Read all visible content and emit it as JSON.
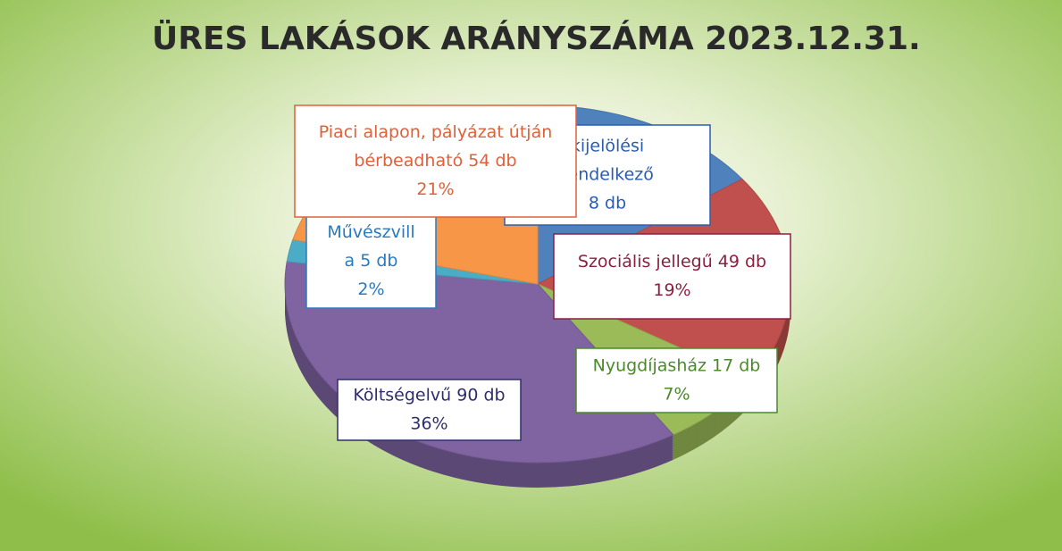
{
  "chart_data": {
    "type": "pie3d",
    "title": "ÜRES LAKÁSOK ARÁNYSZÁMA 2023.12.31.",
    "categories": [
      [
        "kijelölési",
        "rendelkező",
        "8 db"
      ],
      [
        "Szociális jellegű 49 db"
      ],
      [
        "Nyugdíjasház 17 db"
      ],
      [
        "Költségelvű 90 db"
      ],
      [
        "Művészvill",
        "a 5 db"
      ],
      [
        "Piaci alapon, pályázat útján",
        "bérbeadható 54 db"
      ]
    ],
    "values": [
      15,
      19,
      7,
      36,
      2,
      21
    ],
    "value_labels": [
      null,
      "19%",
      "7%",
      "36%",
      "2%",
      "21%"
    ],
    "colors": [
      "#4f81bd",
      "#c0504d",
      "#9bbb59",
      "#8064a2",
      "#4bacc6",
      "#f79646"
    ],
    "label_colors": [
      "#2a5db0",
      "#8b2040",
      "#4a8a2a",
      "#2e2e6e",
      "#2a7ac0",
      "#e0603a"
    ]
  }
}
